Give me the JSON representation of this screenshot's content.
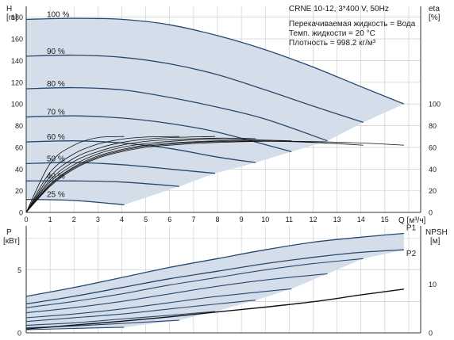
{
  "chart_data": [
    {
      "type": "line",
      "panel": "head-efficiency",
      "colors": {
        "area": "#d3deea",
        "curve": "#26486e",
        "efficiency": "#111111",
        "grid": "#c8c8c8"
      },
      "title_lines": [
        "CRNE 10-12, 3*400 V, 50Hz"
      ],
      "info_lines": [
        "Перекачиваемая жидкость = Вода",
        "Темп. жидкости = 20 °C",
        "Плотность = 998.2 кг/м³"
      ],
      "left_axis": {
        "label": "H",
        "unit": "[m]",
        "range": [
          0,
          190
        ],
        "ticks": [
          0,
          20,
          40,
          60,
          80,
          100,
          120,
          140,
          160,
          180
        ]
      },
      "right_axis": {
        "label": "eta",
        "unit": "[%]",
        "range": [
          0,
          190
        ],
        "ticks": [
          0,
          20,
          40,
          60,
          80,
          100
        ]
      },
      "x_axis": {
        "label": "Q [м³/ч]",
        "range": [
          0,
          16.5
        ],
        "ticks": [
          0,
          1,
          2,
          3,
          4,
          5,
          6,
          7,
          8,
          9,
          10,
          11,
          12,
          13,
          14,
          15,
          16
        ]
      },
      "series": [
        {
          "name": "100 %",
          "x": [
            0,
            2,
            4,
            6,
            8,
            10,
            12,
            14,
            15.8
          ],
          "y": [
            178,
            179,
            178,
            173,
            163,
            150,
            134,
            116,
            100
          ]
        },
        {
          "name": "90 %",
          "x": [
            0,
            2,
            4,
            6,
            8,
            10,
            12,
            14.1
          ],
          "y": [
            144,
            145,
            143,
            137,
            127,
            113,
            98,
            83
          ]
        },
        {
          "name": "80 %",
          "x": [
            0,
            2,
            4,
            6,
            8,
            10,
            12.6
          ],
          "y": [
            114,
            115,
            113,
            106,
            97,
            86,
            66
          ]
        },
        {
          "name": "70 %",
          "x": [
            0,
            2,
            4,
            6,
            8,
            11.1
          ],
          "y": [
            88,
            89,
            87,
            82,
            74,
            56
          ]
        },
        {
          "name": "60 %",
          "x": [
            0,
            2,
            4,
            6,
            8,
            9.6
          ],
          "y": [
            65,
            66,
            64,
            59,
            51,
            46
          ]
        },
        {
          "name": "50 %",
          "x": [
            0,
            2,
            4,
            6,
            7.9
          ],
          "y": [
            45,
            46,
            44,
            40,
            36
          ]
        },
        {
          "name": "40 %",
          "x": [
            0,
            2,
            4,
            6.4
          ],
          "y": [
            29,
            29,
            28,
            24
          ]
        },
        {
          "name": "25 %",
          "x": [
            0,
            2,
            4.1
          ],
          "y": [
            12,
            11,
            7
          ]
        }
      ],
      "efficiency_curves": [
        {
          "x": [
            0,
            1,
            2,
            3,
            4,
            5,
            6,
            7,
            8,
            10,
            12,
            14,
            15.8
          ],
          "y": [
            0,
            24,
            40,
            50,
            56,
            60,
            62,
            63.5,
            64.5,
            65.5,
            65.3,
            64,
            62
          ]
        },
        {
          "x": [
            0,
            1,
            2,
            3,
            4,
            5,
            6,
            7,
            8,
            10,
            12,
            14.1
          ],
          "y": [
            0,
            25,
            41,
            51,
            57,
            61,
            63,
            64.5,
            65.3,
            65.8,
            64.5,
            62
          ]
        },
        {
          "x": [
            0,
            1,
            2,
            3,
            4,
            5,
            6,
            8,
            10,
            12.6
          ],
          "y": [
            0,
            26,
            42,
            52,
            58,
            62,
            64,
            66,
            66.5,
            64
          ]
        },
        {
          "x": [
            0,
            1,
            2,
            3,
            4,
            5,
            6,
            8,
            11.1
          ],
          "y": [
            0,
            28,
            44,
            54,
            60,
            63.5,
            65.5,
            67.5,
            66
          ]
        },
        {
          "x": [
            0,
            1,
            2,
            3,
            4,
            5,
            6,
            8,
            9.6
          ],
          "y": [
            0,
            30,
            47,
            56,
            62,
            65.5,
            67,
            68.5,
            68
          ]
        },
        {
          "x": [
            0,
            1,
            2,
            3,
            4,
            5,
            6,
            7.9
          ],
          "y": [
            0,
            33,
            50,
            59,
            64.5,
            67.5,
            69,
            70
          ]
        },
        {
          "x": [
            0,
            1,
            2,
            3,
            4,
            5,
            6.4
          ],
          "y": [
            0,
            37,
            54,
            63,
            67.5,
            69.5,
            70
          ]
        },
        {
          "x": [
            0,
            1,
            2,
            3,
            4.1
          ],
          "y": [
            0,
            45,
            62,
            69,
            70
          ]
        }
      ],
      "grid": true
    },
    {
      "type": "line",
      "panel": "power-npsh",
      "left_axis": {
        "label": "P",
        "unit": "[кВт]",
        "range": [
          0,
          8.5
        ],
        "ticks": [
          0,
          5
        ]
      },
      "right_axis": {
        "label": "NPSH",
        "unit": "[м]",
        "range": [
          0,
          22
        ],
        "ticks": [
          0,
          10
        ]
      },
      "x_axis": {
        "range": [
          0,
          16.5
        ],
        "ticks": [
          0,
          1,
          2,
          3,
          4,
          5,
          6,
          7,
          8,
          9,
          10,
          11,
          12,
          13,
          14,
          15,
          16
        ]
      },
      "series": [
        {
          "name": "P1",
          "x": [
            0,
            2,
            4,
            6,
            8,
            10,
            12,
            14,
            15.8
          ],
          "y": [
            2.9,
            3.6,
            4.4,
            5.2,
            5.9,
            6.6,
            7.2,
            7.6,
            7.9
          ]
        },
        {
          "name": "P2",
          "x": [
            0,
            2,
            4,
            6,
            8,
            10,
            12,
            14,
            15.8
          ],
          "y": [
            2.3,
            2.9,
            3.6,
            4.3,
            4.9,
            5.5,
            6.0,
            6.4,
            6.6
          ]
        }
      ],
      "power_curves": [
        {
          "x": [
            0,
            2,
            4,
            6,
            8,
            10,
            12,
            14.1
          ],
          "y": [
            2.0,
            2.5,
            3.1,
            3.8,
            4.4,
            5.0,
            5.5,
            5.9
          ]
        },
        {
          "x": [
            0,
            2,
            4,
            6,
            8,
            10,
            12.6
          ],
          "y": [
            1.6,
            2.0,
            2.5,
            3.1,
            3.7,
            4.2,
            4.7
          ]
        },
        {
          "x": [
            0,
            2,
            4,
            6,
            8,
            11.1
          ],
          "y": [
            1.2,
            1.5,
            1.9,
            2.4,
            2.9,
            3.5
          ]
        },
        {
          "x": [
            0,
            2,
            4,
            6,
            8,
            9.6
          ],
          "y": [
            0.9,
            1.2,
            1.5,
            1.9,
            2.3,
            2.6
          ]
        },
        {
          "x": [
            0,
            2,
            4,
            6,
            7.9
          ],
          "y": [
            0.6,
            0.8,
            1.1,
            1.4,
            1.7
          ]
        },
        {
          "x": [
            0,
            2,
            4,
            6.4
          ],
          "y": [
            0.4,
            0.55,
            0.75,
            1.0
          ]
        },
        {
          "x": [
            0,
            2,
            4.1
          ],
          "y": [
            0.25,
            0.35,
            0.45
          ]
        }
      ],
      "npsh_curve": {
        "x": [
          0,
          2,
          4,
          6,
          8,
          10,
          12,
          14,
          15.8
        ],
        "y": [
          0.8,
          1.6,
          2.4,
          3.3,
          4.3,
          5.3,
          6.4,
          7.8,
          9.0
        ]
      },
      "grid": true
    }
  ]
}
